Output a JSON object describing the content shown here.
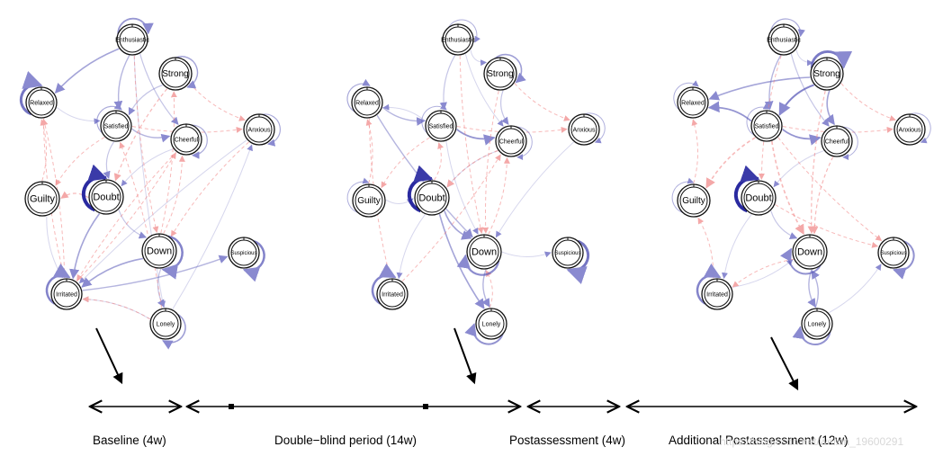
{
  "networks": [
    {
      "name": "baseline",
      "nodes": [
        {
          "id": "Enthusiastic",
          "label": "Enthusiastic",
          "size": "small"
        },
        {
          "id": "Strong",
          "label": "Strong",
          "size": "med"
        },
        {
          "id": "Relaxed",
          "label": "Relaxed",
          "size": "small"
        },
        {
          "id": "Satisfied",
          "label": "Satisfied",
          "size": "small"
        },
        {
          "id": "Cheerful",
          "label": "Cheerful",
          "size": "small"
        },
        {
          "id": "Anxious",
          "label": "Anxious",
          "size": "small"
        },
        {
          "id": "Guilty",
          "label": "Guilty",
          "size": "large"
        },
        {
          "id": "Doubt",
          "label": "Doubt",
          "size": "large"
        },
        {
          "id": "Down",
          "label": "Down",
          "size": "large"
        },
        {
          "id": "Suspicious",
          "label": "Suspicious",
          "size": "tiny"
        },
        {
          "id": "Irritated",
          "label": "Irritated",
          "size": "small"
        },
        {
          "id": "Lonely",
          "label": "Lonely",
          "size": "small"
        }
      ]
    },
    {
      "name": "double-blind",
      "nodes": [
        {
          "id": "Enthusiastic",
          "label": "Enthusiastic",
          "size": "small"
        },
        {
          "id": "Strong",
          "label": "Strong",
          "size": "med"
        },
        {
          "id": "Relaxed",
          "label": "Relaxed",
          "size": "small"
        },
        {
          "id": "Satisfied",
          "label": "Satisfied",
          "size": "small"
        },
        {
          "id": "Cheerful",
          "label": "Cheerful",
          "size": "small"
        },
        {
          "id": "Anxious",
          "label": "Anxious",
          "size": "small"
        },
        {
          "id": "Guilty",
          "label": "Guilty",
          "size": "med"
        },
        {
          "id": "Doubt",
          "label": "Doubt",
          "size": "large"
        },
        {
          "id": "Down",
          "label": "Down",
          "size": "large"
        },
        {
          "id": "Suspicious",
          "label": "Suspicious",
          "size": "tiny"
        },
        {
          "id": "Irritated",
          "label": "Irritated",
          "size": "small"
        },
        {
          "id": "Lonely",
          "label": "Lonely",
          "size": "small"
        }
      ]
    },
    {
      "name": "additional-postassessment",
      "nodes": [
        {
          "id": "Enthusiastic",
          "label": "Enthusiastic",
          "size": "small"
        },
        {
          "id": "Strong",
          "label": "Strong",
          "size": "med"
        },
        {
          "id": "Relaxed",
          "label": "Relaxed",
          "size": "small"
        },
        {
          "id": "Satisfied",
          "label": "Satisfied",
          "size": "small"
        },
        {
          "id": "Cheerful",
          "label": "Cheerful",
          "size": "small"
        },
        {
          "id": "Anxious",
          "label": "Anxious",
          "size": "small"
        },
        {
          "id": "Guilty",
          "label": "Guilty",
          "size": "med"
        },
        {
          "id": "Doubt",
          "label": "Doubt",
          "size": "large"
        },
        {
          "id": "Down",
          "label": "Down",
          "size": "large"
        },
        {
          "id": "Suspicious",
          "label": "Suspicious",
          "size": "tiny"
        },
        {
          "id": "Irritated",
          "label": "Irritated",
          "size": "small"
        },
        {
          "id": "Lonely",
          "label": "Lonely",
          "size": "small"
        }
      ]
    }
  ],
  "timeline": {
    "periods": [
      {
        "id": "baseline",
        "label": "Baseline (4w)"
      },
      {
        "id": "double-blind",
        "label": "Double−blind period (14w)"
      },
      {
        "id": "postassessment",
        "label": "Postassessment (4w)"
      },
      {
        "id": "additional",
        "label": "Additional Postassessment (12w)"
      }
    ]
  },
  "colors": {
    "positive_edge": "#5a5ab8",
    "negative_edge": "#f08080",
    "node_ring": "#111111"
  },
  "watermark": "https://blog.csdn.net/weixin_19600291"
}
